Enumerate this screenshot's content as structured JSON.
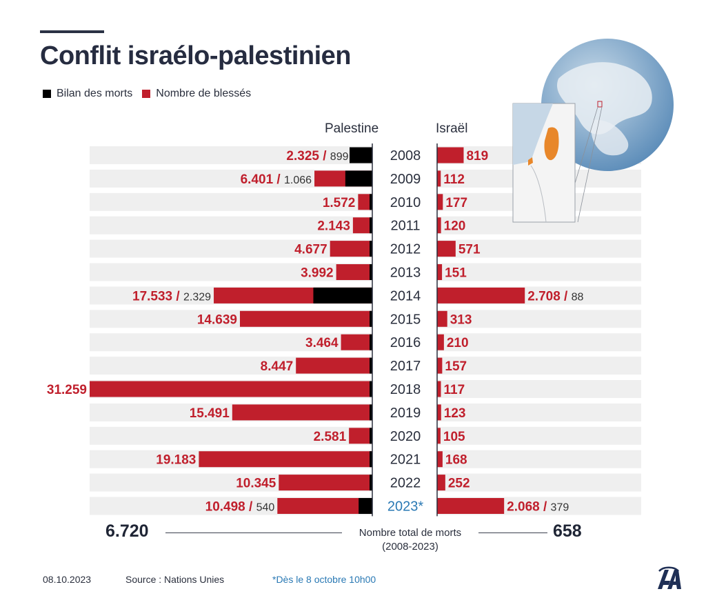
{
  "title": "Conflit israélo-palestinien",
  "legend": [
    {
      "label": "Bilan des morts",
      "color": "#000000"
    },
    {
      "label": "Nombre de blessés",
      "color": "#c01f2c"
    }
  ],
  "headers": {
    "left": "Palestine",
    "right": "Israël"
  },
  "colors": {
    "injured": "#c01f2c",
    "killed": "#000000",
    "row_bg": "#efefef",
    "note": "#2a79b4",
    "map_highlight": "#e8872a"
  },
  "chart_data": {
    "type": "bar",
    "categories": [
      "2008",
      "2009",
      "2010",
      "2011",
      "2012",
      "2013",
      "2014",
      "2015",
      "2016",
      "2017",
      "2018",
      "2019",
      "2020",
      "2021",
      "2022",
      "2023*"
    ],
    "series": [
      {
        "name": "Palestine",
        "injured": [
          2325,
          6401,
          1572,
          2143,
          4677,
          3992,
          17533,
          14639,
          3464,
          8447,
          31259,
          15491,
          2581,
          19183,
          10345,
          10498
        ],
        "injured_labels": [
          "2.325",
          "6.401",
          "1.572",
          "2.143",
          "4.677",
          "3.992",
          "17.533",
          "14.639",
          "3.464",
          "8.447",
          "31.259",
          "15.491",
          "2.581",
          "19.183",
          "10.345",
          "10.498"
        ],
        "killed": [
          899,
          1066,
          null,
          null,
          null,
          null,
          2329,
          null,
          null,
          null,
          null,
          null,
          null,
          null,
          null,
          540
        ],
        "killed_labels": [
          "899",
          "1.066",
          "",
          "",
          "",
          "",
          "2.329",
          "",
          "",
          "",
          "",
          "",
          "",
          "",
          "",
          "540"
        ]
      },
      {
        "name": "Israël",
        "injured": [
          819,
          112,
          177,
          120,
          571,
          151,
          2708,
          313,
          210,
          157,
          117,
          123,
          105,
          168,
          252,
          2068
        ],
        "injured_labels": [
          "819",
          "112",
          "177",
          "120",
          "571",
          "151",
          "2.708",
          "313",
          "210",
          "157",
          "117",
          "123",
          "105",
          "168",
          "252",
          "2.068"
        ],
        "killed": [
          null,
          null,
          null,
          null,
          null,
          null,
          88,
          null,
          null,
          null,
          null,
          null,
          null,
          null,
          null,
          379
        ],
        "killed_labels": [
          "",
          "",
          "",
          "",
          "",
          "",
          "88",
          "",
          "",
          "",
          "",
          "",
          "",
          "",
          "",
          "379"
        ]
      }
    ],
    "xmax_left": 31259,
    "xmax_right": 6300,
    "highlight_category": "2023*"
  },
  "totals": {
    "palestine": "6.720",
    "israel": "658",
    "label_line1": "Nombre total de morts",
    "label_line2": "(2008-2023)"
  },
  "footer": {
    "date": "08.10.2023",
    "source": "Source : Nations Unies",
    "note": "*Dès le 8 octobre 10h00"
  }
}
